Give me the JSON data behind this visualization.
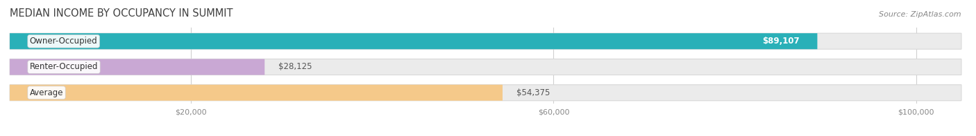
{
  "title": "MEDIAN INCOME BY OCCUPANCY IN SUMMIT",
  "source": "Source: ZipAtlas.com",
  "categories": [
    "Owner-Occupied",
    "Renter-Occupied",
    "Average"
  ],
  "values": [
    89107,
    28125,
    54375
  ],
  "bar_colors": [
    "#2ab0b8",
    "#c9a8d4",
    "#f5c98a"
  ],
  "value_labels": [
    "$89,107",
    "$28,125",
    "$54,375"
  ],
  "value_inside": [
    true,
    false,
    false
  ],
  "x_ticks": [
    20000,
    60000,
    100000
  ],
  "x_tick_labels": [
    "$20,000",
    "$60,000",
    "$100,000"
  ],
  "x_max": 105000,
  "title_fontsize": 10.5,
  "source_fontsize": 8,
  "label_fontsize": 8.5,
  "value_fontsize": 8.5,
  "background_color": "#ffffff",
  "bar_bg_color": "#ebebeb",
  "bar_border_color": "#d8d8d8",
  "grid_color": "#d0d0d0",
  "tick_color": "#888888"
}
